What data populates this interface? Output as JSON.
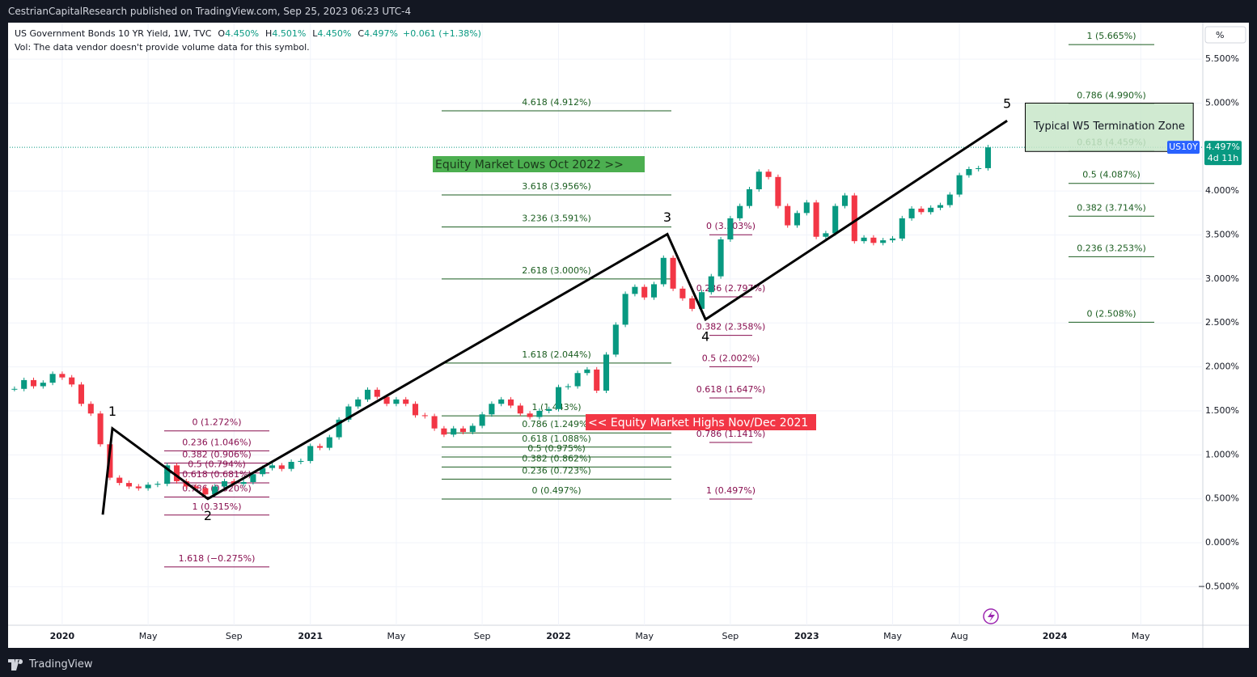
{
  "header": "CestrianCapitalResearch published on TradingView.com, Sep 25, 2023 06:23 UTC-4",
  "footer": "TradingView",
  "chart_data": {
    "type": "candlestick",
    "legend": {
      "symbol": "US Government Bonds 10 YR Yield, 1W, TVC",
      "ohlc": [
        {
          "key": "O",
          "value": "4.450%"
        },
        {
          "key": "H",
          "value": "4.501%"
        },
        {
          "key": "L",
          "value": "4.450%"
        },
        {
          "key": "C",
          "value": "4.497%"
        }
      ],
      "change": "+0.061 (+1.38%)",
      "volume_note": "Vol: The data vendor doesn't provide volume data for this symbol."
    },
    "scale_button": "%",
    "categories": [
      null,
      null,
      null,
      null,
      null,
      "2020",
      null,
      null,
      null,
      null,
      null,
      null,
      null,
      null,
      "May",
      null,
      null,
      null,
      null,
      null,
      null,
      null,
      null,
      "Sep",
      null,
      null,
      null,
      null,
      null,
      null,
      null,
      "2021",
      null,
      null,
      null,
      null,
      null,
      null,
      null,
      null,
      "May",
      null,
      null,
      null,
      null,
      null,
      null,
      null,
      null,
      "Sep",
      null,
      null,
      null,
      null,
      null,
      null,
      null,
      "2022",
      null,
      null,
      null,
      null,
      null,
      null,
      null,
      null,
      "May",
      null,
      null,
      null,
      null,
      null,
      null,
      null,
      null,
      "Sep",
      null,
      null,
      null,
      null,
      null,
      null,
      null,
      "2023",
      null,
      null,
      null,
      null,
      null,
      null,
      null,
      null,
      "May",
      null,
      null,
      null,
      null,
      null,
      null,
      "Aug",
      null,
      null,
      null,
      null,
      null,
      null,
      null,
      null,
      null,
      "2024",
      null,
      null,
      null,
      null,
      null,
      null,
      null,
      null,
      "May",
      null,
      null,
      null,
      null,
      null,
      null
    ],
    "series": [
      {
        "name": "US10Y",
        "up_color": "#089981",
        "down_color": "#f23645",
        "values": [
          1.75,
          1.85,
          1.78,
          1.82,
          1.92,
          1.88,
          1.8,
          1.58,
          1.47,
          1.12,
          0.74,
          0.68,
          0.64,
          0.62,
          0.66,
          0.67,
          0.88,
          0.7,
          0.64,
          0.62,
          0.55,
          0.64,
          0.7,
          0.67,
          0.69,
          0.78,
          0.85,
          0.88,
          0.84,
          0.92,
          0.93,
          1.1,
          1.08,
          1.2,
          1.4,
          1.55,
          1.63,
          1.74,
          1.66,
          1.58,
          1.63,
          1.58,
          1.45,
          1.44,
          1.3,
          1.23,
          1.3,
          1.26,
          1.33,
          1.46,
          1.58,
          1.63,
          1.56,
          1.47,
          1.43,
          1.5,
          1.52,
          1.77,
          1.78,
          1.93,
          1.97,
          1.73,
          2.14,
          2.48,
          2.83,
          2.91,
          2.79,
          2.94,
          3.24,
          2.89,
          2.78,
          2.66,
          2.85,
          3.03,
          3.45,
          3.69,
          3.83,
          4.02,
          4.22,
          4.16,
          3.83,
          3.61,
          3.75,
          3.87,
          3.48,
          3.52,
          3.83,
          3.95,
          3.43,
          3.47,
          3.41,
          3.44,
          3.46,
          3.69,
          3.8,
          3.76,
          3.81,
          3.84,
          3.96,
          4.18,
          4.25,
          4.26,
          4.497,
          null,
          null,
          null,
          null,
          null,
          null,
          null,
          null,
          null,
          null,
          null,
          null,
          null,
          null,
          null,
          null,
          null,
          null,
          null,
          null,
          null,
          null
        ]
      }
    ],
    "ylim": [
      -0.938,
      5.915
    ],
    "yticks": [
      {
        "value": 5.5,
        "label": "5.500%"
      },
      {
        "value": 5,
        "label": "5.000%"
      },
      {
        "value": 4,
        "label": "4.000%"
      },
      {
        "value": 3.5,
        "label": "3.500%"
      },
      {
        "value": 3,
        "label": "3.000%"
      },
      {
        "value": 2.5,
        "label": "2.500%"
      },
      {
        "value": 2,
        "label": "2.000%"
      },
      {
        "value": 1.5,
        "label": "1.500%"
      },
      {
        "value": 1,
        "label": "1.000%"
      },
      {
        "value": 0.5,
        "label": "0.500%"
      },
      {
        "value": 0,
        "label": "0.000%"
      },
      {
        "value": -0.5,
        "label": "−0.500%"
      }
    ],
    "grid": true,
    "price_tag": {
      "symbol": "US10Y",
      "value": 4.497,
      "label": "4.497%",
      "countdown": "4d 11h"
    },
    "wave": {
      "color": "#000000",
      "x": [
        9.25,
        10.26,
        20.26,
        68.4,
        72.4,
        104.0
      ],
      "values": [
        0.32,
        1.3,
        0.5,
        3.51,
        2.54,
        4.8
      ],
      "labels": [
        null,
        "1",
        "2",
        "3",
        "4",
        "5"
      ]
    },
    "fib_sets": [
      {
        "color": "#880e4f",
        "levels": [
          {
            "label": "0 (1.272%)",
            "value": 1.272
          },
          {
            "label": "0.236 (1.046%)",
            "value": 1.046
          },
          {
            "label": "0.382 (0.906%)",
            "value": 0.906
          },
          {
            "label": "0.5 (0.794%)",
            "value": 0.794
          },
          {
            "label": "0.618 (0.681%)",
            "value": 0.681
          },
          {
            "label": "0.786 (0.520%)",
            "value": 0.52
          },
          {
            "label": "1 (0.315%)",
            "value": 0.315
          },
          {
            "label": "1.618 (−0.275%)",
            "value": -0.275
          }
        ]
      },
      {
        "color": "#1b5e20",
        "levels": [
          {
            "label": "4.618 (4.912%)",
            "value": 4.912
          },
          {
            "label": "3.618 (3.956%)",
            "value": 3.956
          },
          {
            "label": "3.236 (3.591%)",
            "value": 3.591
          },
          {
            "label": "2.618 (3.000%)",
            "value": 3.0
          },
          {
            "label": "1.618 (2.044%)",
            "value": 2.044
          },
          {
            "label": "1 (1.443%)",
            "value": 1.443
          },
          {
            "label": "0.786 (1.249%)",
            "value": 1.249
          },
          {
            "label": "0.618 (1.088%)",
            "value": 1.088
          },
          {
            "label": "0.5 (0.975%)",
            "value": 0.975
          },
          {
            "label": "0.382 (0.862%)",
            "value": 0.862
          },
          {
            "label": "0.236 (0.723%)",
            "value": 0.723
          },
          {
            "label": "0 (0.497%)",
            "value": 0.497
          }
        ]
      },
      {
        "color": "#880e4f",
        "levels": [
          {
            "label": "0 (3.503%)",
            "value": 3.503
          },
          {
            "label": "0.236 (2.797%)",
            "value": 2.797
          },
          {
            "label": "0.382 (2.358%)",
            "value": 2.358
          },
          {
            "label": "0.5 (2.002%)",
            "value": 2.002
          },
          {
            "label": "0.618 (1.647%)",
            "value": 1.647
          },
          {
            "label": "0.786 (1.141%)",
            "value": 1.141
          },
          {
            "label": "1 (0.497%)",
            "value": 0.497
          }
        ]
      },
      {
        "color": "#1b5e20",
        "levels": [
          {
            "label": "1 (5.665%)",
            "value": 5.665
          },
          {
            "label": "0.786 (4.990%)",
            "value": 4.99
          },
          {
            "label": "0.618 (4.459%)",
            "value": 4.459
          },
          {
            "label": "0.5 (4.087%)",
            "value": 4.087
          },
          {
            "label": "0.382 (3.714%)",
            "value": 3.714
          },
          {
            "label": "0.236 (3.253%)",
            "value": 3.253
          },
          {
            "label": "0 (2.508%)",
            "value": 2.508
          }
        ]
      }
    ],
    "annotations": [
      {
        "text": "Equity Market Lows Oct 2022 >>",
        "color": "#4caf50",
        "text_color": "#1b3a1b"
      },
      {
        "text": "<< Equity Market Highs Nov/Dec 2021",
        "color": "#f23645",
        "text_color": "#ffffff"
      }
    ],
    "zone": {
      "text": "Typical W5 Termination Zone",
      "color": "#c8e6c9",
      "xlim": [
        105.9,
        123.5
      ],
      "ylim": [
        4.45,
        5.0
      ]
    }
  }
}
